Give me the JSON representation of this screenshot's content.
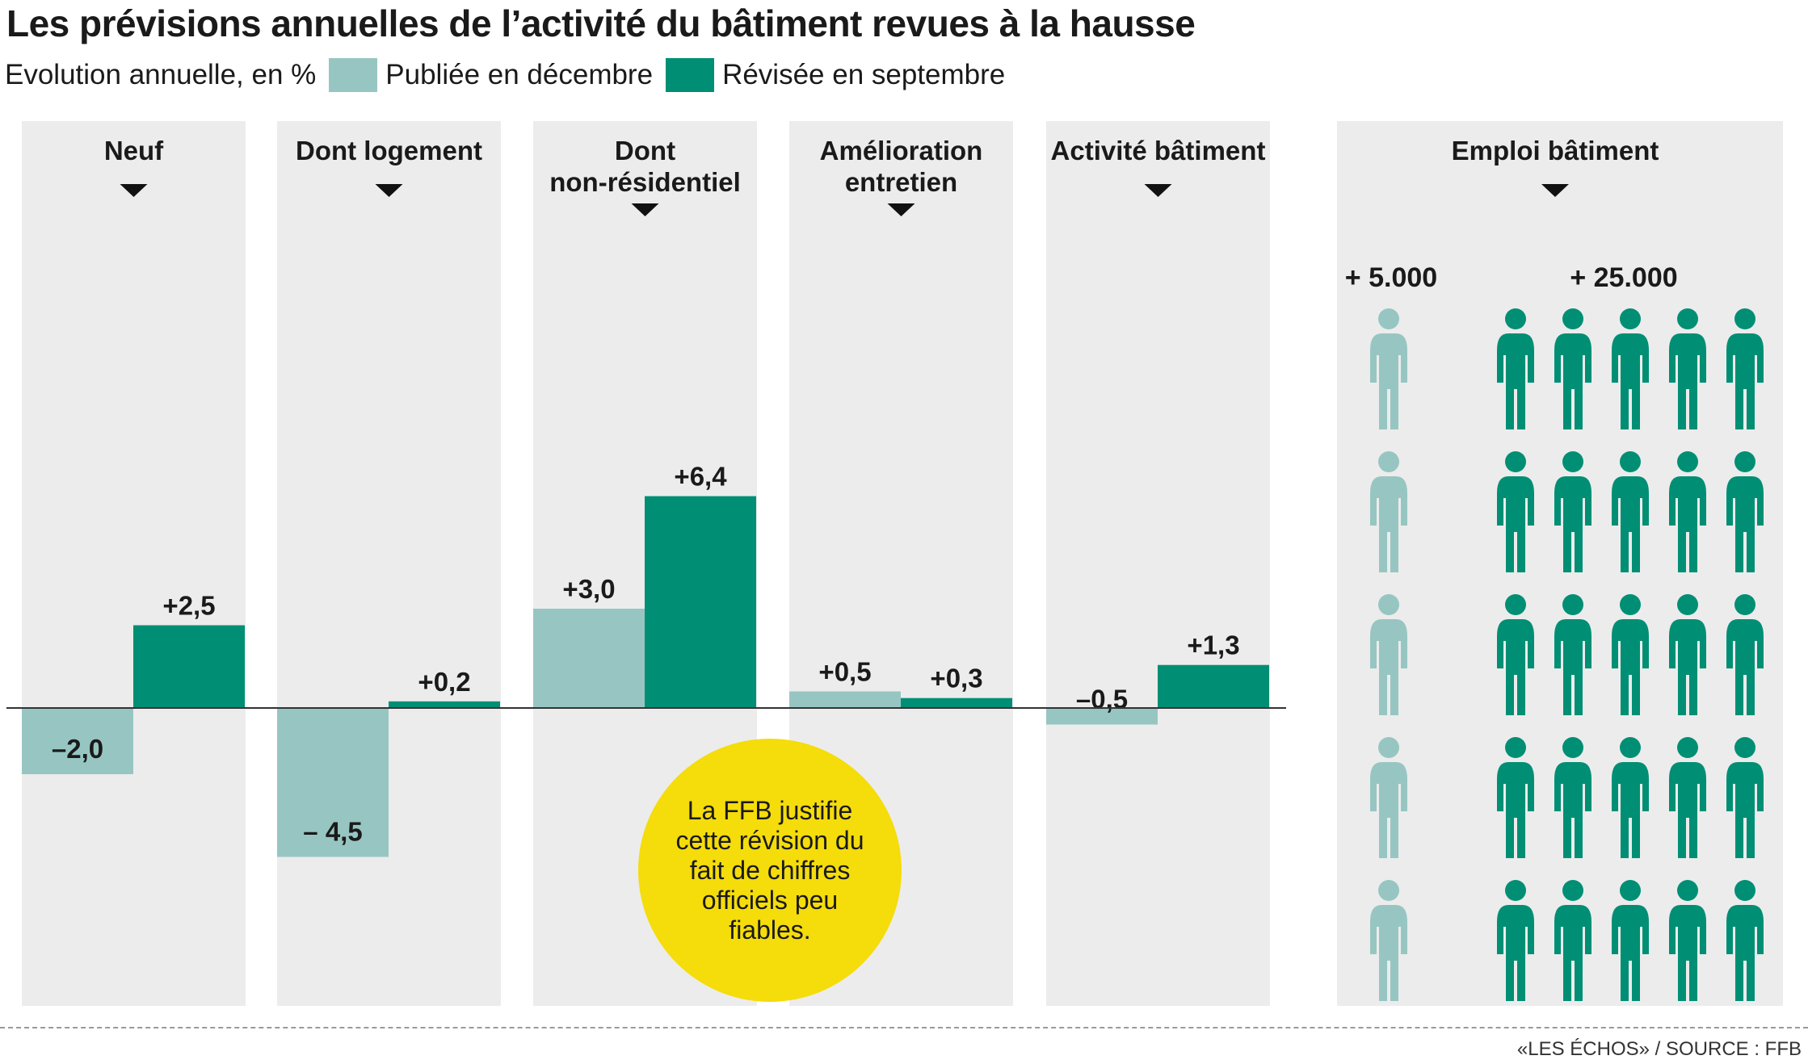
{
  "header": {
    "title": "Les prévisions annuelles de l’activité du bâtiment revues à la hausse",
    "subtitle": "Evolution annuelle, en %"
  },
  "legend": {
    "published": "Publiée en décembre",
    "revised": "Révisée en septembre"
  },
  "colors": {
    "published": "#97c6c2",
    "revised": "#008f74",
    "panel_bg": "#ececec",
    "note_bg": "#f5dc0b"
  },
  "chart_data": {
    "type": "bar",
    "categories": [
      "Neuf",
      "Dont logement",
      "Dont\nnon-résidentiel",
      "Amélioration\nentretien",
      "Activité bâtiment"
    ],
    "series": [
      {
        "name": "Publiée en décembre",
        "values": [
          -2.0,
          -4.5,
          3.0,
          0.5,
          -0.5
        ]
      },
      {
        "name": "Révisée en septembre",
        "values": [
          2.5,
          0.2,
          6.4,
          0.3,
          1.3
        ]
      }
    ],
    "data_labels": [
      [
        "–2,0",
        "– 4,5",
        "+3,0",
        "+0,5",
        "–0,5"
      ],
      [
        "+2,5",
        "+0,2",
        "+6,4",
        "+0,3",
        "+1,3"
      ]
    ],
    "ylim": [
      -4.5,
      6.4
    ]
  },
  "employment": {
    "title": "Emploi bâtiment",
    "published_label": "+ 5.000",
    "revised_label": "+ 25.000",
    "published_value": 5000,
    "revised_value": 25000,
    "published_icons": 5,
    "revised_icons": 25,
    "icon": "person-icon"
  },
  "note": "La FFB justifie cette révision du fait de chiffres officiels peu fiables.",
  "source": "«LES ÉCHOS» / SOURCE : FFB"
}
